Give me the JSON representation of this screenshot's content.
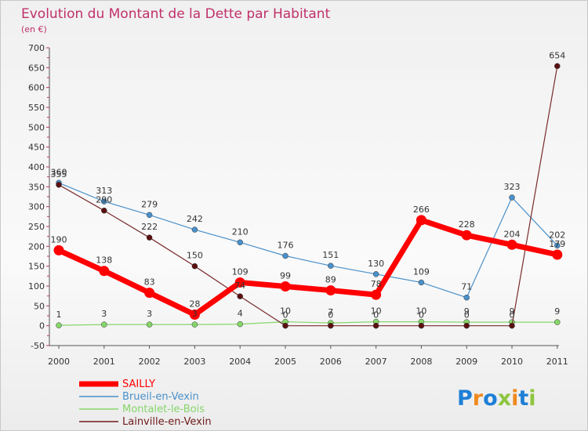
{
  "chart_data": {
    "type": "line",
    "title": "Evolution du Montant de la Dette par Habitant",
    "subtitle": "(en €)",
    "x": [
      "2000",
      "2001",
      "2002",
      "2003",
      "2004",
      "2005",
      "2006",
      "2007",
      "2008",
      "2009",
      "2010",
      "2011"
    ],
    "y_ticks": [
      "-50",
      "0",
      "50",
      "100",
      "150",
      "200",
      "250",
      "300",
      "350",
      "400",
      "450",
      "500",
      "550",
      "600",
      "650",
      "700"
    ],
    "ylim": [
      -50,
      700
    ],
    "grid": false,
    "legend_position": "bottom-left",
    "series": [
      {
        "name": "SAILLY",
        "color": "#ff0000",
        "values": [
          190,
          138,
          83,
          28,
          109,
          99,
          89,
          78,
          266,
          228,
          204,
          179
        ]
      },
      {
        "name": "Brueil-en-Vexin",
        "color": "#4a90c9",
        "values": [
          360,
          313,
          279,
          242,
          210,
          176,
          151,
          130,
          109,
          71,
          323,
          202
        ]
      },
      {
        "name": "Montalet-le-Bois",
        "color": "#86d66a",
        "values": [
          1,
          3,
          3,
          3,
          4,
          10,
          7,
          10,
          10,
          9,
          9,
          9
        ]
      },
      {
        "name": "Lainville-en-Vexin",
        "color": "#6e1a1a",
        "values": [
          355,
          290,
          222,
          150,
          74,
          0,
          0,
          0,
          0,
          0,
          0,
          654
        ]
      }
    ]
  },
  "logo": {
    "text": "Proxiti",
    "letter_colors": [
      "#1e7fd6",
      "#f08a1e",
      "#1e7fd6",
      "#8dc63f",
      "#f08a1e",
      "#1e7fd6",
      "#8dc63f"
    ]
  }
}
